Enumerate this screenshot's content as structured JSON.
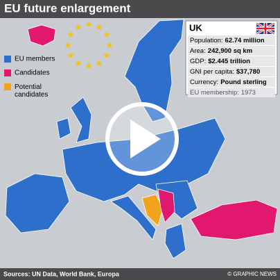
{
  "header": {
    "title": "EU future enlargement"
  },
  "legend": [
    {
      "label": "EU members",
      "color": "#2f6fcc"
    },
    {
      "label": "Candidates",
      "color": "#e2186f"
    },
    {
      "label": "Potential candidates",
      "color": "#f3a21c"
    }
  ],
  "info": {
    "country": "UK",
    "rows": [
      {
        "label": "Population:",
        "value": "62.74 million"
      },
      {
        "label": "Area:",
        "value": "242,900 sq km"
      },
      {
        "label": "GDP:",
        "value": "$2.445 trillion"
      },
      {
        "label": "GNI per capita:",
        "value": "$37,780"
      },
      {
        "label": "Currency:",
        "value": "Pound sterling"
      }
    ],
    "membership": {
      "label": "EU membership:",
      "value": "1973"
    }
  },
  "footer": {
    "sources": "Sources: UN Data, World Bank, Europa",
    "credit": "© GRAPHIC NEWS"
  }
}
